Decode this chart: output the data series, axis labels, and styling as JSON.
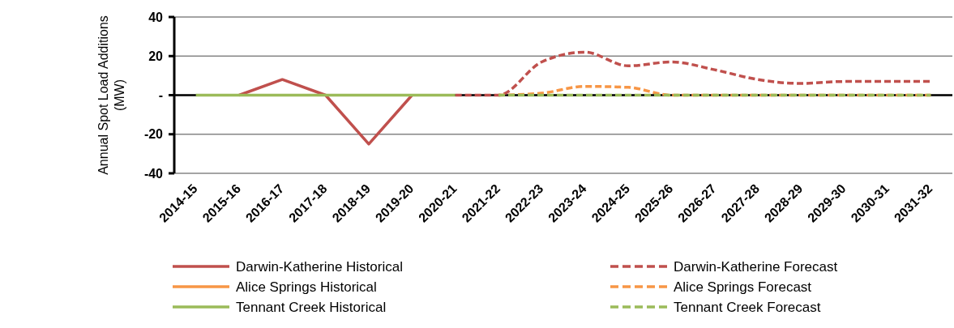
{
  "chart_data": {
    "type": "line",
    "ylabel": "Annual Spot Load Additions (MW)",
    "categories": [
      "2014-15",
      "2015-16",
      "2016-17",
      "2017-18",
      "2018-19",
      "2019-20",
      "2020-21",
      "2021-22",
      "2022-23",
      "2023-24",
      "2024-25",
      "2025-26",
      "2026-27",
      "2027-28",
      "2028-29",
      "2029-30",
      "2030-31",
      "2031-32"
    ],
    "series": [
      {
        "name": "Darwin-Katherine Historical",
        "color": "#c0504d",
        "line_style": "solid",
        "values": [
          null,
          0,
          8,
          0,
          -25,
          0,
          null,
          null,
          null,
          null,
          null,
          null,
          null,
          null,
          null,
          null,
          null,
          null
        ]
      },
      {
        "name": "Darwin-Katherine Forecast",
        "color": "#c0504d",
        "line_style": "dashed",
        "values": [
          null,
          null,
          null,
          null,
          null,
          null,
          0,
          0,
          17,
          22,
          15,
          17,
          13,
          8,
          6,
          7,
          7,
          7
        ]
      },
      {
        "name": "Alice Springs Historical",
        "color": "#f79646",
        "line_style": "solid",
        "values": [
          null,
          null,
          null,
          null,
          null,
          null,
          null,
          null,
          null,
          null,
          null,
          null,
          null,
          null,
          null,
          null,
          null,
          null
        ]
      },
      {
        "name": "Alice Springs Forecast",
        "color": "#f79646",
        "line_style": "dashed",
        "values": [
          null,
          null,
          null,
          null,
          null,
          null,
          null,
          0,
          1,
          4.5,
          4,
          0,
          0,
          0,
          0,
          0,
          0,
          0
        ]
      },
      {
        "name": "Tennant Creek Historical",
        "color": "#9bbb59",
        "line_style": "solid",
        "values": [
          0,
          0,
          0,
          0,
          0,
          0,
          0,
          null,
          null,
          null,
          null,
          null,
          null,
          null,
          null,
          null,
          null,
          null
        ]
      },
      {
        "name": "Tennant Creek Forecast",
        "color": "#9bbb59",
        "line_style": "dashed",
        "values": [
          null,
          null,
          null,
          null,
          null,
          null,
          null,
          0,
          0,
          0,
          0,
          0,
          0,
          0,
          0,
          0,
          0,
          0
        ]
      }
    ],
    "ylim": [
      -40,
      40
    ],
    "yticks": [
      -40,
      -20,
      {
        "value": 0,
        "label": "-"
      },
      20,
      40
    ],
    "grid": "y",
    "legend": "bottom",
    "marker": "none"
  }
}
